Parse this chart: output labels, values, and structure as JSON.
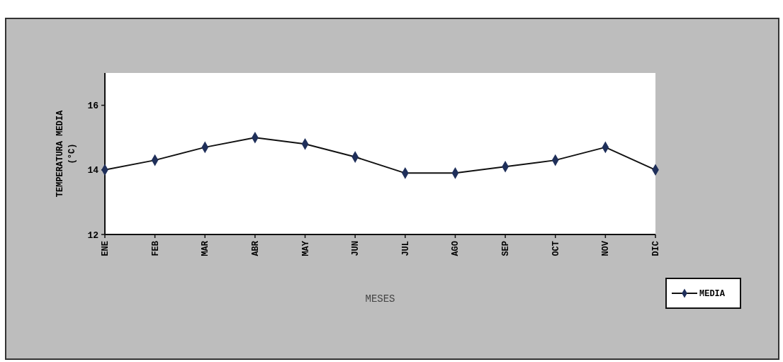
{
  "chart_data": {
    "type": "line",
    "xlabel": "MESES",
    "ylabel": "TEMPERATURA MEDIA (°C)",
    "categories": [
      "ENE",
      "FEB",
      "MAR",
      "ABR",
      "MAY",
      "JUN",
      "JUL",
      "AGO",
      "SEP",
      "OCT",
      "NOV",
      "DIC"
    ],
    "series": [
      {
        "name": "MEDIA",
        "color": "#1f2f5a",
        "values": [
          14.0,
          14.3,
          14.7,
          15.0,
          14.8,
          14.4,
          13.9,
          13.9,
          14.1,
          14.3,
          14.7,
          14.0
        ]
      }
    ],
    "ylim": [
      12,
      17
    ],
    "yticks": [
      12,
      14,
      16
    ],
    "grid": false,
    "legend": "bottom right",
    "marker": "diamond",
    "line_style": "solid"
  }
}
